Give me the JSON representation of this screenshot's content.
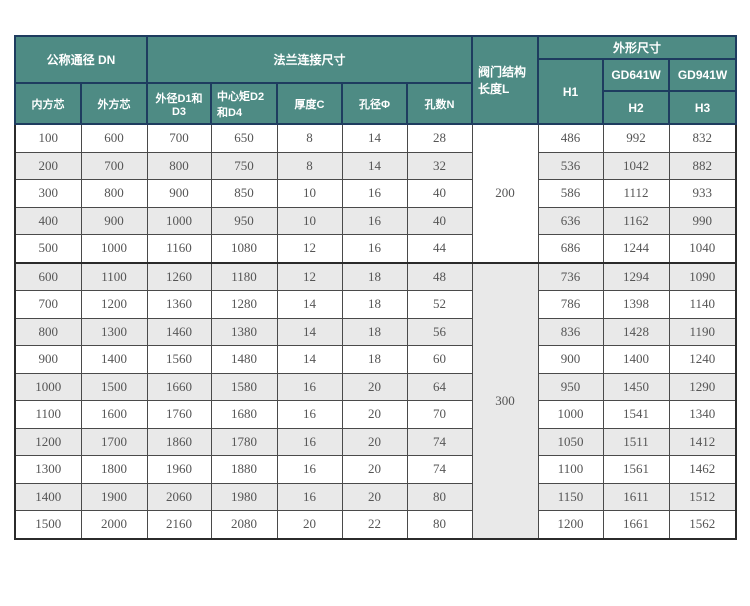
{
  "table": {
    "header": {
      "group_dn": "公称通径 DN",
      "col_inner": "内方芯",
      "col_outer": "外方芯",
      "group_flange": "法兰连接尺寸",
      "col_od": "外径D1和D3",
      "col_center": "中心矩D2和D4",
      "col_thickness": "厚度C",
      "col_hole_dia": "孔径Φ",
      "col_hole_num": "孔数N",
      "valve_length": "阀门结构长度L",
      "group_dim": "外形尺寸",
      "col_h1": "H1",
      "col_gd641w": "GD641W",
      "col_gd941w": "GD941W",
      "col_h2": "H2",
      "col_h3": "H3"
    },
    "colors": {
      "header_bg": "#4e8b84",
      "header_border": "#1e3c5f",
      "header_text": "#ffffff",
      "stripe_bg": "#e9e9e9",
      "data_border": "#4a4a4a",
      "data_text": "#555555"
    },
    "groups": [
      {
        "length_l": "200",
        "rows": [
          [
            100,
            600,
            700,
            650,
            8,
            14,
            28,
            486,
            992,
            832
          ],
          [
            200,
            700,
            800,
            750,
            8,
            14,
            32,
            536,
            1042,
            882
          ],
          [
            300,
            800,
            900,
            850,
            10,
            16,
            40,
            586,
            1112,
            933
          ],
          [
            400,
            900,
            1000,
            950,
            10,
            16,
            40,
            636,
            1162,
            990
          ],
          [
            500,
            1000,
            1160,
            1080,
            12,
            16,
            44,
            686,
            1244,
            1040
          ]
        ]
      },
      {
        "length_l": "300",
        "rows": [
          [
            600,
            1100,
            1260,
            1180,
            12,
            18,
            48,
            736,
            1294,
            1090
          ],
          [
            700,
            1200,
            1360,
            1280,
            14,
            18,
            52,
            786,
            1398,
            1140
          ],
          [
            800,
            1300,
            1460,
            1380,
            14,
            18,
            56,
            836,
            1428,
            1190
          ],
          [
            900,
            1400,
            1560,
            1480,
            14,
            18,
            60,
            900,
            1400,
            1240
          ],
          [
            1000,
            1500,
            1660,
            1580,
            16,
            20,
            64,
            950,
            1450,
            1290
          ],
          [
            1100,
            1600,
            1760,
            1680,
            16,
            20,
            70,
            1000,
            1541,
            1340
          ],
          [
            1200,
            1700,
            1860,
            1780,
            16,
            20,
            74,
            1050,
            1511,
            1412
          ],
          [
            1300,
            1800,
            1960,
            1880,
            16,
            20,
            74,
            1100,
            1561,
            1462
          ],
          [
            1400,
            1900,
            2060,
            1980,
            16,
            20,
            80,
            1150,
            1611,
            1512
          ],
          [
            1500,
            2000,
            2160,
            2080,
            20,
            22,
            80,
            1200,
            1661,
            1562
          ]
        ]
      }
    ]
  }
}
